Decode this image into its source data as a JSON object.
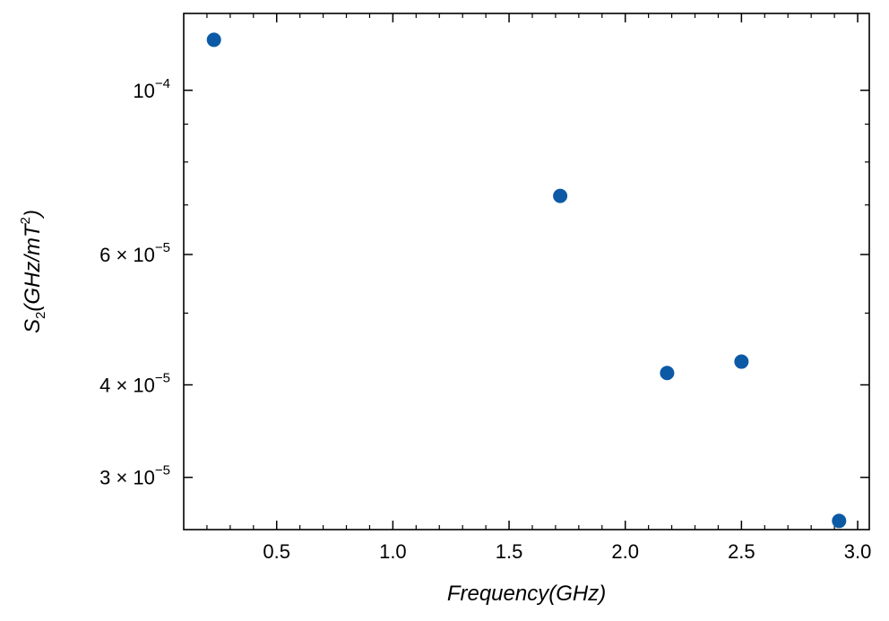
{
  "chart_data": {
    "type": "scatter",
    "title": "",
    "xlabel": "Frequency(GHz)",
    "ylabel": "S2(GHz/mT2)",
    "xlim": [
      0.1,
      3.05
    ],
    "ylim": [
      2.55e-05,
      0.000127
    ],
    "yscale": "log",
    "grid": false,
    "marker_color": "#0c5aa6",
    "series": [
      {
        "x": [
          0.23,
          1.72,
          2.18,
          2.5,
          2.92
        ],
        "y": [
          0.000117,
          7.2e-05,
          4.15e-05,
          4.3e-05,
          2.62e-05
        ]
      }
    ],
    "x_ticks": [
      {
        "value": 0.5,
        "label": "0.5"
      },
      {
        "value": 1.0,
        "label": "1.0"
      },
      {
        "value": 1.5,
        "label": "1.5"
      },
      {
        "value": 2.0,
        "label": "2.0"
      },
      {
        "value": 2.5,
        "label": "2.5"
      },
      {
        "value": 3.0,
        "label": "3.0"
      }
    ],
    "y_ticks": [
      {
        "value": 0.0001,
        "mantissa": "",
        "exponent": "−4"
      },
      {
        "value": 6e-05,
        "mantissa": "6 × ",
        "exponent": "−5"
      },
      {
        "value": 4e-05,
        "mantissa": "4 × ",
        "exponent": "−5"
      },
      {
        "value": 3e-05,
        "mantissa": "3 × ",
        "exponent": "−5"
      }
    ],
    "y_tick_base": "10"
  }
}
